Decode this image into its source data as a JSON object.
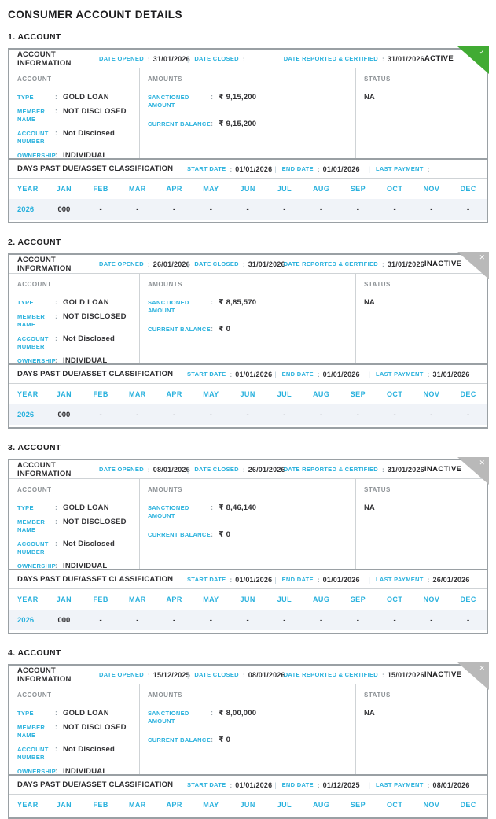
{
  "page": {
    "title": "CONSUMER ACCOUNT DETAILS"
  },
  "labels": {
    "account_information": "ACCOUNT INFORMATION",
    "date_opened": "DATE OPENED",
    "date_closed": "DATE CLOSED",
    "date_reported": "DATE REPORTED & CERTIFIED",
    "account": "ACCOUNT",
    "amounts": "AMOUNTS",
    "status": "STATUS",
    "type": "TYPE",
    "member_name": "MEMBER NAME",
    "account_number": "ACCOUNT NUMBER",
    "ownership": "OWNERSHIP",
    "sanctioned_amount": "SANCTIONED AMOUNT",
    "current_balance": "CURRENT BALANCE",
    "dpd": "DAYS PAST DUE/ASSET CLASSIFICATION",
    "start_date": "START DATE",
    "end_date": "END DATE",
    "last_payment": "LAST PAYMENT",
    "colon": ":",
    "pipe": "|"
  },
  "colors": {
    "accent": "#29b1dd",
    "active_ribbon": "#41ab33",
    "inactive_ribbon": "#b9b9b9",
    "row_background": "#f0f3f8"
  },
  "months": [
    "YEAR",
    "JAN",
    "FEB",
    "MAR",
    "APR",
    "MAY",
    "JUN",
    "JUL",
    "AUG",
    "SEP",
    "OCT",
    "NOV",
    "DEC"
  ],
  "accounts": [
    {
      "index_label": "1. ACCOUNT",
      "date_opened": "31/01/2026",
      "date_closed": "",
      "date_reported": "31/01/2026",
      "status_badge": "ACTIVE",
      "badge_type": "active",
      "badge_icon": "✓",
      "type": "GOLD LOAN",
      "member_name": "NOT DISCLOSED",
      "account_number": "Not Disclosed",
      "ownership": "INDIVIDUAL",
      "sanctioned_amount": "₹ 9,15,200",
      "current_balance": "₹ 9,15,200",
      "status": "NA",
      "start_date": "01/01/2026",
      "end_date": "01/01/2026",
      "last_payment": "",
      "dpd_rows": [
        {
          "year": "2026",
          "values": [
            "000",
            "-",
            "-",
            "-",
            "-",
            "-",
            "-",
            "-",
            "-",
            "-",
            "-",
            "-"
          ]
        }
      ]
    },
    {
      "index_label": "2. ACCOUNT",
      "date_opened": "26/01/2026",
      "date_closed": "31/01/2026",
      "date_reported": "31/01/2026",
      "status_badge": "INACTIVE",
      "badge_type": "inactive",
      "badge_icon": "✕",
      "type": "GOLD LOAN",
      "member_name": "NOT DISCLOSED",
      "account_number": "Not Disclosed",
      "ownership": "INDIVIDUAL",
      "sanctioned_amount": "₹ 8,85,570",
      "current_balance": "₹ 0",
      "status": "NA",
      "start_date": "01/01/2026",
      "end_date": "01/01/2026",
      "last_payment": "31/01/2026",
      "dpd_rows": [
        {
          "year": "2026",
          "values": [
            "000",
            "-",
            "-",
            "-",
            "-",
            "-",
            "-",
            "-",
            "-",
            "-",
            "-",
            "-"
          ]
        }
      ]
    },
    {
      "index_label": "3. ACCOUNT",
      "date_opened": "08/01/2026",
      "date_closed": "26/01/2026",
      "date_reported": "31/01/2026",
      "status_badge": "INACTIVE",
      "badge_type": "inactive",
      "badge_icon": "✕",
      "type": "GOLD LOAN",
      "member_name": "NOT DISCLOSED",
      "account_number": "Not Disclosed",
      "ownership": "INDIVIDUAL",
      "sanctioned_amount": "₹ 8,46,140",
      "current_balance": "₹ 0",
      "status": "NA",
      "start_date": "01/01/2026",
      "end_date": "01/01/2026",
      "last_payment": "26/01/2026",
      "dpd_rows": [
        {
          "year": "2026",
          "values": [
            "000",
            "-",
            "-",
            "-",
            "-",
            "-",
            "-",
            "-",
            "-",
            "-",
            "-",
            "-"
          ]
        }
      ]
    },
    {
      "index_label": "4. ACCOUNT",
      "date_opened": "15/12/2025",
      "date_closed": "08/01/2026",
      "date_reported": "15/01/2026",
      "status_badge": "INACTIVE",
      "badge_type": "inactive",
      "badge_icon": "✕",
      "type": "GOLD LOAN",
      "member_name": "NOT DISCLOSED",
      "account_number": "Not Disclosed",
      "ownership": "INDIVIDUAL",
      "sanctioned_amount": "₹ 8,00,000",
      "current_balance": "₹ 0",
      "status": "NA",
      "start_date": "01/01/2026",
      "end_date": "01/12/2025",
      "last_payment": "08/01/2026",
      "dpd_rows": []
    }
  ]
}
